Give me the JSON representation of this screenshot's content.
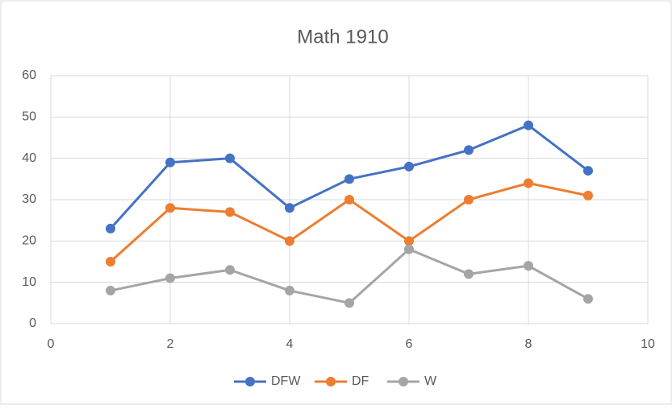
{
  "chart_data": {
    "type": "line",
    "title": "Math 1910",
    "x": [
      1,
      2,
      3,
      4,
      5,
      6,
      7,
      8,
      9
    ],
    "series": [
      {
        "name": "DFW",
        "color": "#4472c4",
        "values": [
          23,
          39,
          40,
          28,
          35,
          38,
          42,
          48,
          37
        ]
      },
      {
        "name": "DF",
        "color": "#ed7d31",
        "values": [
          15,
          28,
          27,
          20,
          30,
          20,
          30,
          34,
          31
        ]
      },
      {
        "name": "W",
        "color": "#a5a5a5",
        "values": [
          8,
          11,
          13,
          8,
          5,
          18,
          12,
          14,
          6
        ]
      }
    ],
    "xlim": [
      0,
      10
    ],
    "xticks": [
      0,
      2,
      4,
      6,
      8,
      10
    ],
    "ylim": [
      0,
      60
    ],
    "yticks": [
      0,
      10,
      20,
      30,
      40,
      50,
      60
    ],
    "grid": true,
    "legend": "bottom"
  }
}
